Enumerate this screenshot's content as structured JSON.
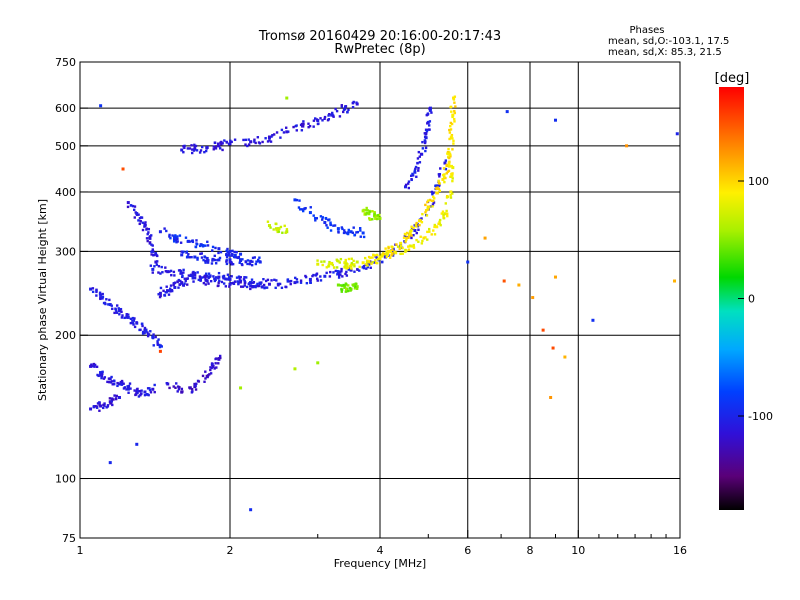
{
  "chart_data": {
    "type": "scatter",
    "title": "Tromsø 20160429 20:16:00-20:17:43",
    "subtitle": "RwPretec (8p)",
    "stats": {
      "heading": "Phases",
      "line_o": "mean, sd,O:-103.1, 17.5",
      "line_x": "mean, sd,X: 85.3, 21.5"
    },
    "xlabel": "Frequency [MHz]",
    "ylabel": "Stationary phase Virtual Height [km]",
    "x_scale": "log",
    "y_scale": "log",
    "xlim": [
      1,
      16
    ],
    "ylim": [
      75,
      750
    ],
    "x_ticks": [
      1,
      2,
      4,
      6,
      8,
      10,
      16
    ],
    "x_tick_labels": [
      "1",
      "2",
      "4",
      "6",
      "8",
      "10",
      "16"
    ],
    "x_grid": [
      2,
      4,
      6,
      8,
      10
    ],
    "y_ticks": [
      75,
      100,
      200,
      300,
      400,
      500,
      600,
      750
    ],
    "y_tick_labels": [
      "75",
      "100",
      "200",
      "300",
      "400",
      "500",
      "600",
      "750"
    ],
    "y_grid": [
      100,
      200,
      300,
      400,
      500,
      600
    ],
    "grid": true,
    "colorbar": {
      "label": "[deg]",
      "range": [
        -180,
        180
      ],
      "ticks": [
        100,
        0,
        -100
      ],
      "tick_labels": [
        "100",
        "0",
        "-100"
      ],
      "colormap": "rainbow"
    },
    "series": [
      {
        "kind": "o-trace",
        "phase": -105,
        "points": [
          [
            1.05,
            250
          ],
          [
            1.1,
            240
          ],
          [
            1.15,
            232
          ],
          [
            1.2,
            225
          ],
          [
            1.25,
            218
          ],
          [
            1.3,
            212
          ],
          [
            1.35,
            205
          ],
          [
            1.4,
            198
          ],
          [
            1.45,
            190
          ]
        ]
      },
      {
        "kind": "o-trace",
        "phase": -110,
        "points": [
          [
            1.05,
            172
          ],
          [
            1.1,
            166
          ],
          [
            1.15,
            162
          ],
          [
            1.2,
            158
          ],
          [
            1.25,
            155
          ],
          [
            1.3,
            152
          ],
          [
            1.35,
            152
          ],
          [
            1.4,
            154
          ]
        ]
      },
      {
        "kind": "o-trace",
        "phase": -115,
        "points": [
          [
            1.05,
            140
          ],
          [
            1.1,
            142
          ],
          [
            1.15,
            145
          ],
          [
            1.2,
            148
          ]
        ]
      },
      {
        "kind": "o-trace",
        "phase": -105,
        "points": [
          [
            1.4,
            275
          ],
          [
            1.5,
            272
          ],
          [
            1.6,
            270
          ],
          [
            1.7,
            268
          ],
          [
            1.8,
            266
          ],
          [
            1.9,
            265
          ],
          [
            2.0,
            262
          ],
          [
            2.1,
            260
          ],
          [
            2.2,
            258
          ],
          [
            2.3,
            257
          ],
          [
            2.5,
            256
          ],
          [
            2.7,
            258
          ],
          [
            2.9,
            262
          ],
          [
            3.1,
            266
          ],
          [
            3.3,
            270
          ],
          [
            3.5,
            274
          ],
          [
            3.8,
            282
          ],
          [
            4.1,
            292
          ],
          [
            4.4,
            308
          ],
          [
            4.7,
            332
          ],
          [
            5.0,
            368
          ],
          [
            5.2,
            412
          ],
          [
            5.4,
            460
          ]
        ]
      },
      {
        "kind": "o-trace",
        "phase": -110,
        "points": [
          [
            1.45,
            245
          ],
          [
            1.5,
            248
          ],
          [
            1.55,
            252
          ],
          [
            1.6,
            258
          ],
          [
            1.7,
            264
          ],
          [
            1.8,
            260
          ],
          [
            2.0,
            256
          ],
          [
            2.2,
            254
          ],
          [
            2.4,
            256
          ]
        ]
      },
      {
        "kind": "o-trace",
        "phase": -100,
        "points": [
          [
            1.6,
            295
          ],
          [
            1.7,
            292
          ],
          [
            1.8,
            290
          ],
          [
            1.9,
            288
          ],
          [
            2.0,
            288
          ],
          [
            2.1,
            287
          ],
          [
            2.2,
            286
          ],
          [
            2.3,
            285
          ]
        ]
      },
      {
        "kind": "o-trace",
        "phase": -95,
        "points": [
          [
            1.45,
            330
          ],
          [
            1.55,
            322
          ],
          [
            1.65,
            315
          ],
          [
            1.75,
            310
          ],
          [
            1.9,
            304
          ],
          [
            2.0,
            300
          ],
          [
            2.1,
            296
          ]
        ]
      },
      {
        "kind": "o-trace",
        "phase": -90,
        "points": [
          [
            2.7,
            385
          ],
          [
            2.9,
            362
          ],
          [
            3.1,
            345
          ],
          [
            3.3,
            335
          ],
          [
            3.5,
            330
          ],
          [
            3.7,
            328
          ]
        ]
      },
      {
        "kind": "o-trace",
        "phase": -110,
        "points": [
          [
            1.25,
            380
          ],
          [
            1.3,
            360
          ],
          [
            1.35,
            340
          ],
          [
            1.38,
            320
          ],
          [
            1.4,
            300
          ],
          [
            1.42,
            285
          ]
        ]
      },
      {
        "kind": "o-trace",
        "phase": -110,
        "points": [
          [
            1.6,
            490
          ],
          [
            1.7,
            492
          ],
          [
            1.8,
            496
          ],
          [
            1.9,
            500
          ],
          [
            2.0,
            505
          ],
          [
            2.2,
            510
          ],
          [
            2.4,
            520
          ],
          [
            2.6,
            535
          ],
          [
            2.8,
            550
          ],
          [
            3.0,
            565
          ],
          [
            3.2,
            580
          ],
          [
            3.4,
            598
          ],
          [
            3.6,
            612
          ]
        ]
      },
      {
        "kind": "o-trace",
        "phase": -120,
        "points": [
          [
            1.5,
            158
          ],
          [
            1.6,
            152
          ],
          [
            1.7,
            156
          ],
          [
            1.8,
            164
          ],
          [
            1.85,
            172
          ],
          [
            1.9,
            178
          ]
        ]
      },
      {
        "kind": "o-trace",
        "phase": -105,
        "points": [
          [
            4.5,
            410
          ],
          [
            4.7,
            440
          ],
          [
            4.85,
            480
          ],
          [
            4.95,
            520
          ],
          [
            5.0,
            560
          ],
          [
            5.05,
            600
          ]
        ]
      },
      {
        "kind": "x-trace",
        "phase": 95,
        "points": [
          [
            3.8,
            286
          ],
          [
            4.0,
            292
          ],
          [
            4.2,
            300
          ],
          [
            4.4,
            312
          ],
          [
            4.6,
            328
          ],
          [
            4.8,
            348
          ],
          [
            5.0,
            372
          ],
          [
            5.2,
            398
          ],
          [
            5.35,
            425
          ],
          [
            5.45,
            455
          ],
          [
            5.52,
            480
          ],
          [
            5.56,
            520
          ],
          [
            5.6,
            580
          ],
          [
            5.62,
            630
          ]
        ]
      },
      {
        "kind": "x-trace",
        "phase": 85,
        "points": [
          [
            3.4,
            278
          ],
          [
            3.7,
            284
          ],
          [
            4.0,
            290
          ],
          [
            4.3,
            298
          ],
          [
            4.6,
            308
          ],
          [
            4.9,
            320
          ],
          [
            5.2,
            338
          ],
          [
            5.4,
            360
          ],
          [
            5.55,
            400
          ],
          [
            5.6,
            450
          ]
        ]
      },
      {
        "kind": "x-trace",
        "phase": 75,
        "points": [
          [
            3.0,
            282
          ],
          [
            3.2,
            283
          ],
          [
            3.4,
            284
          ],
          [
            3.6,
            285
          ]
        ]
      },
      {
        "kind": "x-trace",
        "phase": 45,
        "points": [
          [
            3.3,
            255
          ],
          [
            3.4,
            252
          ],
          [
            3.5,
            250
          ],
          [
            3.6,
            253
          ]
        ]
      },
      {
        "kind": "x-trace",
        "phase": 55,
        "points": [
          [
            3.7,
            365
          ],
          [
            3.8,
            360
          ],
          [
            3.9,
            356
          ],
          [
            4.0,
            352
          ]
        ]
      },
      {
        "kind": "x-trace",
        "phase": 65,
        "points": [
          [
            2.4,
            340
          ],
          [
            2.5,
            335
          ],
          [
            2.6,
            330
          ]
        ]
      },
      {
        "kind": "scatter",
        "phase": 120,
        "points": [
          [
            8.8,
            148
          ],
          [
            9.4,
            180
          ],
          [
            12.5,
            500
          ],
          [
            15.6,
            260
          ],
          [
            7.6,
            255
          ],
          [
            8.1,
            240
          ],
          [
            9.0,
            265
          ],
          [
            6.5,
            320
          ]
        ]
      },
      {
        "kind": "scatter",
        "phase": 150,
        "points": [
          [
            7.1,
            260
          ],
          [
            8.5,
            205
          ],
          [
            8.9,
            188
          ],
          [
            1.45,
            185
          ],
          [
            1.22,
            447
          ]
        ]
      },
      {
        "kind": "scatter",
        "phase": -95,
        "points": [
          [
            1.1,
            607
          ],
          [
            1.15,
            108
          ],
          [
            1.3,
            118
          ],
          [
            2.2,
            86
          ],
          [
            7.2,
            590
          ],
          [
            9.0,
            566
          ],
          [
            15.8,
            530
          ],
          [
            10.7,
            215
          ],
          [
            6.0,
            285
          ]
        ]
      },
      {
        "kind": "scatter",
        "phase": 60,
        "points": [
          [
            2.6,
            630
          ],
          [
            3.0,
            175
          ],
          [
            2.7,
            170
          ],
          [
            2.1,
            155
          ]
        ]
      }
    ]
  }
}
